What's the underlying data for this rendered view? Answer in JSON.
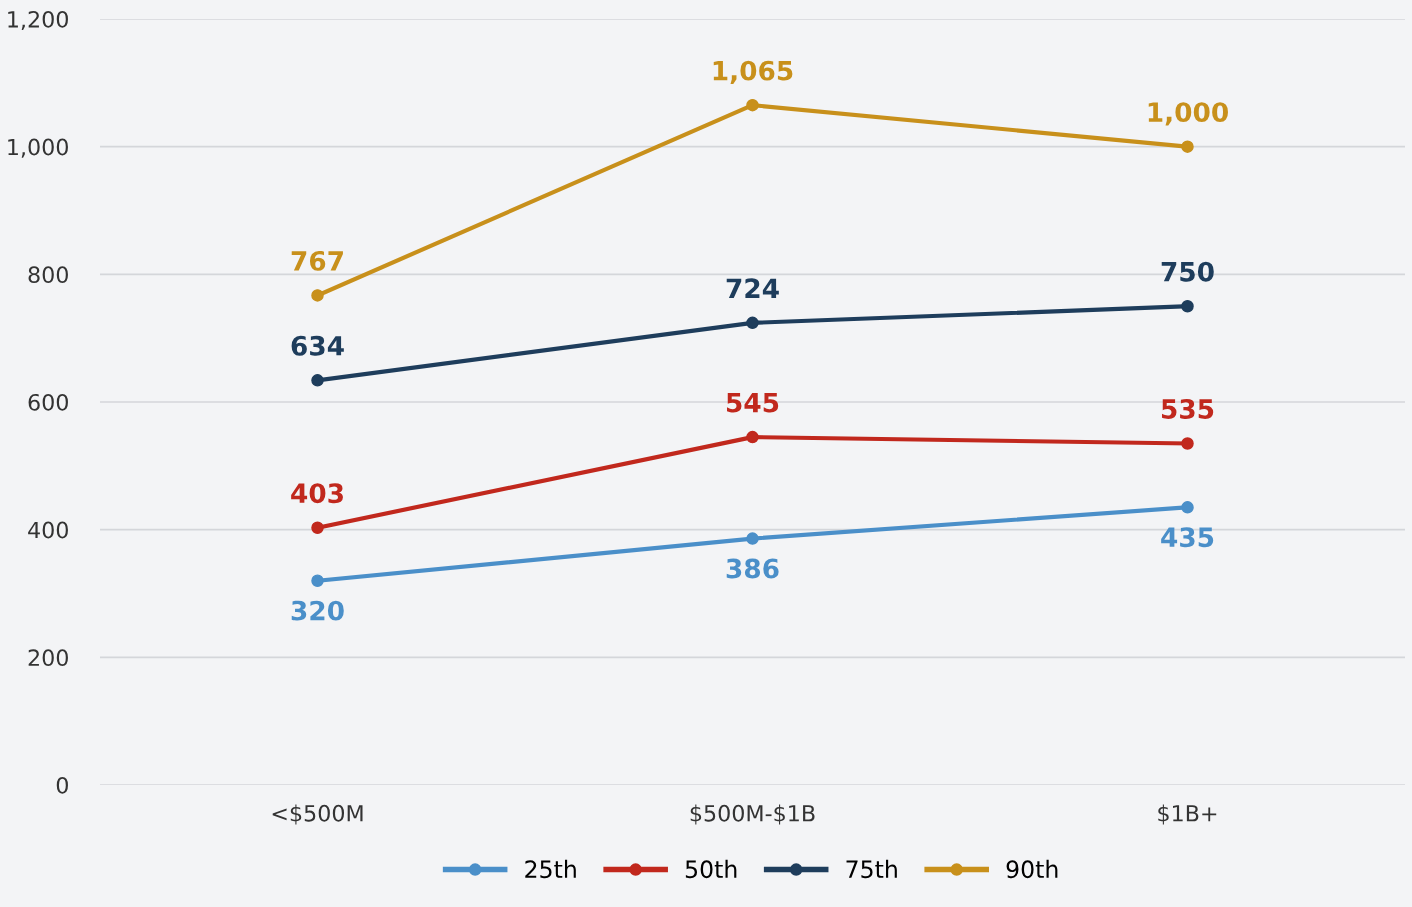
{
  "chart_data": {
    "type": "line",
    "categories": [
      "<$500M",
      "$500M-$1B",
      "$1B+"
    ],
    "series": [
      {
        "name": "25th",
        "color": "#4a8fc9",
        "values": [
          320,
          386,
          435
        ],
        "value_labels": [
          "320",
          "386",
          "435"
        ]
      },
      {
        "name": "50th",
        "color": "#c1281d",
        "values": [
          403,
          545,
          535
        ],
        "value_labels": [
          "403",
          "545",
          "535"
        ]
      },
      {
        "name": "75th",
        "color": "#1e3d5c",
        "values": [
          634,
          724,
          750
        ],
        "value_labels": [
          "634",
          "724",
          "750"
        ]
      },
      {
        "name": "90th",
        "color": "#c8901b",
        "values": [
          767,
          1065,
          1000
        ],
        "value_labels": [
          "767",
          "1,065",
          "1,000"
        ]
      }
    ],
    "ylim": [
      0,
      1200
    ],
    "yticks": [
      0,
      200,
      400,
      600,
      800,
      {
        "value": 1000,
        "label": "1,000"
      },
      {
        "value": 1200,
        "label": "1,200"
      }
    ],
    "grid": "y",
    "legend": "bottom",
    "marker": "circle",
    "line_style": "solid"
  }
}
